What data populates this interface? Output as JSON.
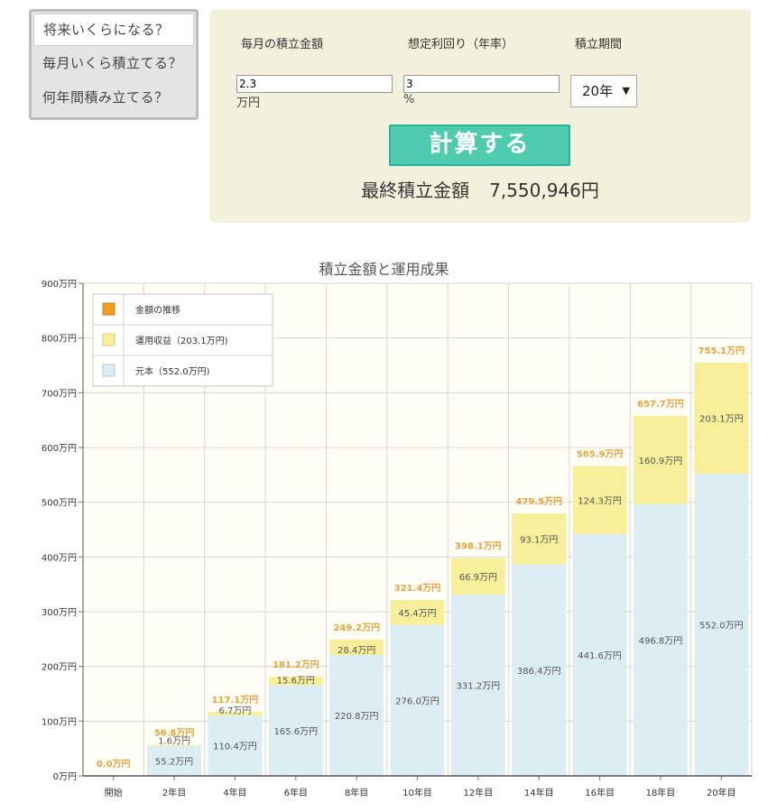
{
  "tabs": [
    {
      "label": "将来いくらになる？",
      "active": true
    },
    {
      "label": "毎月いくら積立てる？",
      "active": false
    },
    {
      "label": "何年間積み立てる？",
      "active": false
    }
  ],
  "form": {
    "monthly_label": "毎月の積立金額",
    "rate_label": "想定利回り（年率）",
    "period_label": "積立期間",
    "monthly_value": "2.3",
    "monthly_unit": "万円",
    "rate_value": "3",
    "rate_unit": "%",
    "period_value": "20年",
    "calc_button": "計算する",
    "result_label": "最終積立金額",
    "result_value": "7,550,946円"
  },
  "colors": {
    "principal": "#ddedf4",
    "gain": "#f8ef9a",
    "trend": "#f0a020",
    "total_label": "#e8a33c",
    "panel_bg": "#f2f2dc",
    "button": "#4fcbb0"
  },
  "chart_data": {
    "type": "bar",
    "stacked": true,
    "title": "積立金額と運用成果",
    "categories": [
      "開始",
      "2年目",
      "4年目",
      "6年目",
      "8年目",
      "10年目",
      "12年目",
      "14年目",
      "16年目",
      "18年目",
      "20年目"
    ],
    "series": [
      {
        "name": "元本（552.0万円)",
        "values": [
          0,
          55.2,
          110.4,
          165.6,
          220.8,
          276.0,
          331.2,
          386.4,
          441.6,
          496.8,
          552.0
        ]
      },
      {
        "name": "運用収益（203.1万円)",
        "values": [
          0,
          1.6,
          6.7,
          15.6,
          28.4,
          45.4,
          66.9,
          93.1,
          124.3,
          160.9,
          203.1
        ]
      }
    ],
    "totals": [
      0.0,
      56.8,
      117.1,
      181.2,
      249.2,
      321.4,
      398.1,
      479.5,
      565.9,
      657.7,
      755.1
    ],
    "trend_legend": "金額の推移",
    "unit": "万円",
    "yticks": [
      0,
      100,
      200,
      300,
      400,
      500,
      600,
      700,
      800,
      900
    ],
    "ylim": [
      0,
      900
    ],
    "grid": true,
    "legend_position": "top-left"
  }
}
